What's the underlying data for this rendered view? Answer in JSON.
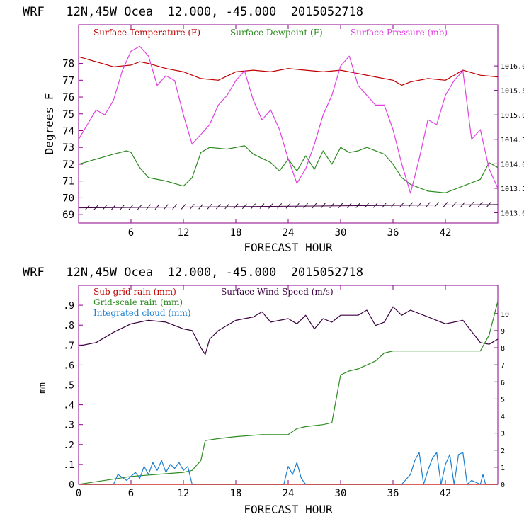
{
  "colors": {
    "temperature": "#c00000",
    "dewpoint": "#2e8b22",
    "pressure": "#e040e0",
    "subgrid_rain": "#c00000",
    "wind": "#3a0040",
    "gridscale_rain": "#2e8b22",
    "cloud": "#1a7fd0",
    "axes": "#8b008b",
    "text": "#000000"
  },
  "chart_data": [
    {
      "type": "line",
      "title": "WRF   12N,45W Ocea  12.000, -45.000  2015052718",
      "xlabel": "FORECAST HOUR",
      "ylabel": "Degrees F",
      "xlim": [
        0,
        48
      ],
      "ylim": [
        68.5,
        80.3
      ],
      "xticks": [
        6,
        12,
        18,
        24,
        30,
        36,
        42
      ],
      "xtick_labels": [
        "6",
        "12",
        "18",
        "24",
        "30",
        "36",
        "42"
      ],
      "yticks": [
        69,
        70,
        71,
        72,
        73,
        74,
        75,
        76,
        77,
        78
      ],
      "ytick_labels": [
        "69",
        "70",
        "71",
        "72",
        "73",
        "74",
        "75",
        "76",
        "77",
        "78"
      ],
      "y2lim": [
        1012.79,
        1016.84
      ],
      "y2ticks": [
        1013.0,
        1013.5,
        1014.0,
        1014.5,
        1015.0,
        1015.5,
        1016.0
      ],
      "y2tick_labels": [
        "1013.0",
        "1013.5",
        "1014.0",
        "1014.5",
        "1015.0",
        "1015.5",
        "1016.0"
      ],
      "legend": [
        {
          "label": "Surface Temperature (F)",
          "color_key": "temperature"
        },
        {
          "label": "Surface Dewpoint (F)",
          "color_key": "dewpoint"
        },
        {
          "label": "Surface Pressure (mb)",
          "color_key": "pressure"
        }
      ],
      "series": [
        {
          "name": "Surface Temperature (F)",
          "axis": "left",
          "color_key": "temperature",
          "x": [
            0,
            2,
            4,
            6,
            7,
            8,
            10,
            12,
            14,
            16,
            18,
            20,
            22,
            24,
            26,
            28,
            30,
            32,
            34,
            36,
            37,
            38,
            40,
            42,
            44,
            46,
            48
          ],
          "values": [
            78.4,
            78.1,
            77.8,
            77.9,
            78.1,
            78.0,
            77.7,
            77.5,
            77.1,
            77.0,
            77.5,
            77.6,
            77.5,
            77.7,
            77.6,
            77.5,
            77.6,
            77.4,
            77.2,
            77.0,
            76.7,
            76.9,
            77.1,
            77.0,
            77.6,
            77.3,
            77.2
          ]
        },
        {
          "name": "Surface Dewpoint (F)",
          "axis": "left",
          "color_key": "dewpoint",
          "x": [
            0,
            2,
            4,
            5.5,
            6,
            7,
            8,
            10,
            12,
            13,
            14,
            15,
            17,
            19,
            20,
            22,
            23,
            24,
            25,
            26,
            27,
            28,
            29,
            30,
            31,
            32,
            33,
            35,
            36,
            37,
            38,
            39,
            40,
            42,
            44,
            46,
            47,
            48
          ],
          "values": [
            72.0,
            72.3,
            72.6,
            72.8,
            72.7,
            71.8,
            71.2,
            71.0,
            70.7,
            71.2,
            72.7,
            73.0,
            72.9,
            73.1,
            72.6,
            72.1,
            71.6,
            72.3,
            71.6,
            72.5,
            71.7,
            72.8,
            72.0,
            73.0,
            72.7,
            72.8,
            73.0,
            72.6,
            72.0,
            71.2,
            70.8,
            70.6,
            70.4,
            70.3,
            70.7,
            71.1,
            72.1,
            71.8
          ]
        },
        {
          "name": "Surface Pressure (mb)",
          "axis": "right",
          "color_key": "pressure",
          "x": [
            0,
            1,
            2,
            3,
            4,
            5,
            6,
            7,
            8,
            9,
            10,
            11,
            12,
            13,
            14,
            15,
            16,
            17,
            18,
            19,
            20,
            21,
            22,
            23,
            24,
            25,
            26,
            27,
            28,
            29,
            30,
            31,
            32,
            33,
            34,
            35,
            36,
            37,
            38,
            39,
            40,
            41,
            42,
            43,
            44,
            45,
            46,
            47,
            48
          ],
          "values": [
            1014.5,
            1014.8,
            1015.1,
            1015.0,
            1015.3,
            1015.9,
            1016.3,
            1016.4,
            1016.2,
            1015.6,
            1015.8,
            1015.7,
            1015.0,
            1014.4,
            1014.6,
            1014.8,
            1015.2,
            1015.4,
            1015.7,
            1015.9,
            1015.3,
            1014.9,
            1015.1,
            1014.7,
            1014.1,
            1013.6,
            1013.9,
            1014.4,
            1015.0,
            1015.4,
            1016.0,
            1016.2,
            1015.6,
            1015.4,
            1015.2,
            1015.2,
            1014.7,
            1014.0,
            1013.4,
            1014.1,
            1014.9,
            1014.8,
            1015.4,
            1015.7,
            1015.9,
            1014.5,
            1014.7,
            1013.9,
            1013.5
          ]
        },
        {
          "name": "wind barbs",
          "axis": "left",
          "color_key": "wind",
          "x": [
            0,
            48
          ],
          "values": [
            69.4,
            69.6
          ]
        }
      ]
    },
    {
      "type": "line",
      "title": "WRF   12N,45W Ocea  12.000, -45.000  2015052718",
      "xlabel": "FORECAST HOUR",
      "ylabel": "mm",
      "xlim": [
        0,
        48
      ],
      "ylim": [
        0,
        1.0
      ],
      "xticks": [
        0,
        6,
        12,
        18,
        24,
        30,
        36,
        42
      ],
      "xtick_labels": [
        "0",
        "6",
        "12",
        "18",
        "24",
        "30",
        "36",
        "42"
      ],
      "yticks": [
        0,
        0.1,
        0.2,
        0.3,
        0.4,
        0.5,
        0.6,
        0.7,
        0.8,
        0.9
      ],
      "ytick_labels": [
        "0",
        ".1",
        ".2",
        ".3",
        ".4",
        ".5",
        ".6",
        ".7",
        ".8",
        ".9"
      ],
      "y2lim": [
        0,
        11.65
      ],
      "y2ticks": [
        0,
        1,
        2,
        3,
        4,
        5,
        6,
        7,
        8,
        9,
        10
      ],
      "y2tick_labels": [
        "0",
        "1",
        "2",
        "3",
        "4",
        "5",
        "6",
        "7",
        "8",
        "9",
        "10"
      ],
      "legend": [
        {
          "label": "Sub-grid rain (mm)",
          "color_key": "subgrid_rain"
        },
        {
          "label": "Surface Wind Speed (m/s)",
          "color_key": "wind"
        },
        {
          "label": "Grid-scale rain (mm)",
          "color_key": "gridscale_rain"
        },
        {
          "label": "Integrated cloud (mm)",
          "color_key": "cloud"
        }
      ],
      "series": [
        {
          "name": "Surface Wind Speed (m/s)",
          "axis": "right",
          "color_key": "wind",
          "x": [
            0,
            2,
            4,
            6,
            8,
            10,
            12,
            13,
            14,
            14.5,
            15,
            16,
            18,
            20,
            21,
            22,
            24,
            25,
            26,
            27,
            28,
            29,
            30,
            32,
            33,
            34,
            35,
            36,
            37,
            38,
            40,
            42,
            44,
            46,
            47,
            48
          ],
          "values": [
            8.1,
            8.3,
            8.9,
            9.4,
            9.6,
            9.5,
            9.1,
            9.0,
            8.0,
            7.6,
            8.5,
            9.0,
            9.6,
            9.8,
            10.1,
            9.5,
            9.7,
            9.4,
            9.9,
            9.1,
            9.7,
            9.5,
            9.9,
            9.9,
            10.2,
            9.3,
            9.5,
            10.4,
            9.9,
            10.2,
            9.8,
            9.4,
            9.6,
            8.3,
            8.2,
            8.5
          ]
        },
        {
          "name": "Grid-scale rain (mm)",
          "axis": "left",
          "color_key": "gridscale_rain",
          "x": [
            0,
            6,
            12,
            13,
            14,
            14.5,
            16,
            18,
            21,
            24,
            25,
            26,
            28,
            29,
            30,
            31,
            32,
            33,
            34,
            35,
            36,
            40,
            42,
            44,
            46,
            47,
            48
          ],
          "values": [
            0,
            0.04,
            0.06,
            0.07,
            0.12,
            0.22,
            0.23,
            0.24,
            0.25,
            0.25,
            0.28,
            0.29,
            0.3,
            0.31,
            0.55,
            0.57,
            0.58,
            0.6,
            0.62,
            0.66,
            0.67,
            0.67,
            0.67,
            0.67,
            0.67,
            0.75,
            0.92
          ]
        },
        {
          "name": "Integrated cloud (mm)",
          "axis": "left",
          "color_key": "cloud",
          "x": [
            0,
            4,
            4.5,
            5.5,
            6.5,
            7,
            7.5,
            8,
            8.5,
            9,
            9.5,
            10,
            10.5,
            11,
            11.5,
            12,
            12.5,
            13,
            23.5,
            24,
            24.5,
            25,
            25.5,
            26,
            37,
            38,
            38.5,
            39,
            39.5,
            40,
            40.5,
            41,
            41.5,
            42,
            42.5,
            43,
            43.5,
            44,
            44.5,
            45,
            46,
            46.3,
            46.6,
            48
          ],
          "values": [
            0,
            0,
            0.05,
            0.02,
            0.06,
            0.03,
            0.09,
            0.05,
            0.11,
            0.07,
            0.12,
            0.06,
            0.1,
            0.08,
            0.11,
            0.07,
            0.09,
            0,
            0,
            0.09,
            0.05,
            0.11,
            0.03,
            0,
            0,
            0.05,
            0.12,
            0.16,
            0,
            0.07,
            0.13,
            0.16,
            0,
            0.1,
            0.15,
            0,
            0.15,
            0.16,
            0,
            0.02,
            0,
            0.05,
            0,
            0
          ]
        },
        {
          "name": "Sub-grid rain (mm)",
          "axis": "left",
          "color_key": "subgrid_rain",
          "x": [
            0,
            48
          ],
          "values": [
            0,
            0
          ]
        }
      ]
    }
  ]
}
